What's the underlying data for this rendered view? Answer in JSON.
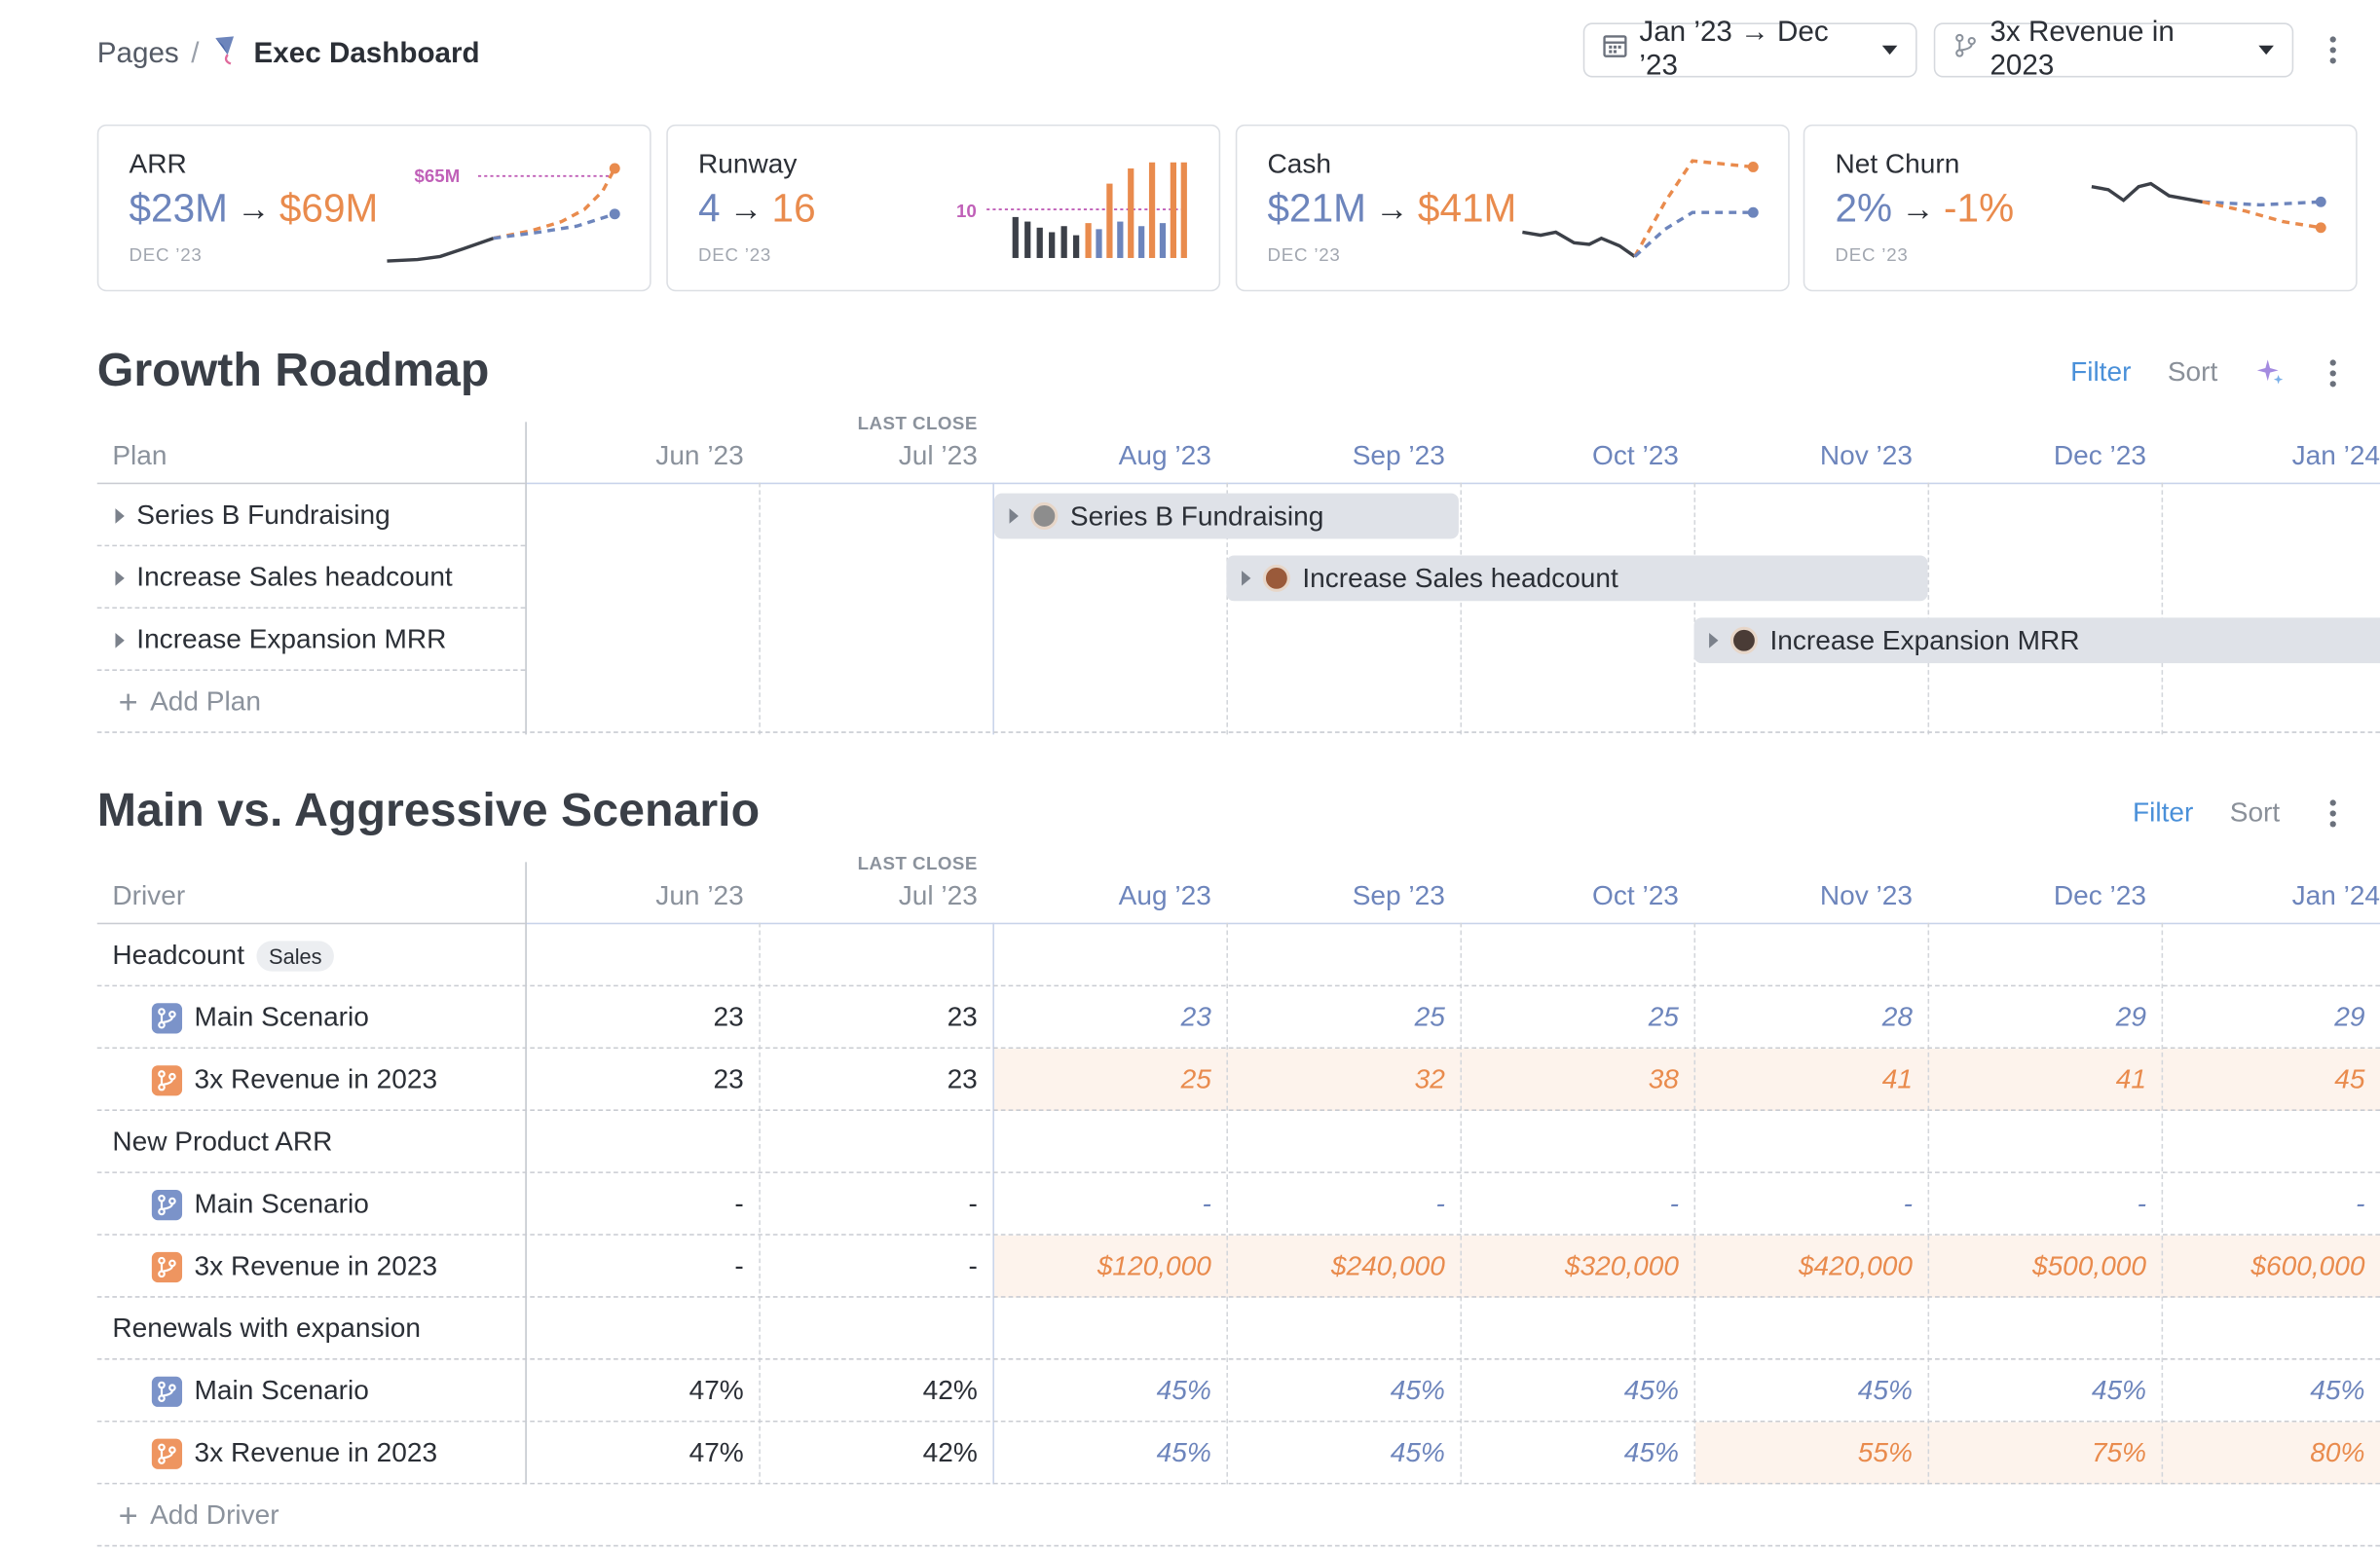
{
  "breadcrumb": {
    "root": "Pages",
    "separator": "/",
    "current": "Exec Dashboard"
  },
  "controls": {
    "date_range": "Jan ’23 → Dec ’23",
    "scenario": "3x Revenue in 2023"
  },
  "cards": [
    {
      "title": "ARR",
      "from": "$23M",
      "to": "$69M",
      "date": "DEC ’23",
      "annotation": "$65M"
    },
    {
      "title": "Runway",
      "from": "4",
      "to": "16",
      "date": "DEC ’23",
      "annotation": "10"
    },
    {
      "title": "Cash",
      "from": "$21M",
      "to": "$41M",
      "date": "DEC ’23"
    },
    {
      "title": "Net Churn",
      "from": "2%",
      "to": "-1%",
      "date": "DEC ’23"
    }
  ],
  "roadmap": {
    "title": "Growth Roadmap",
    "filter": "Filter",
    "sort": "Sort",
    "first_col": "Plan",
    "last_close": "LAST CLOSE",
    "months": [
      "Jun ’23",
      "Jul ’23",
      "Aug ’23",
      "Sep ’23",
      "Oct ’23",
      "Nov ’23",
      "Dec ’23",
      "Jan ’24"
    ],
    "plans": [
      "Series B Fundraising",
      "Increase Sales headcount",
      "Increase Expansion MRR"
    ],
    "add_label": "Add Plan"
  },
  "scenario": {
    "title": "Main vs. Aggressive Scenario",
    "filter": "Filter",
    "sort": "Sort",
    "first_col": "Driver",
    "last_close": "LAST CLOSE",
    "months": [
      "Jun ’23",
      "Jul ’23",
      "Aug ’23",
      "Sep ’23",
      "Oct ’23",
      "Nov ’23",
      "Dec ’23",
      "Jan ’24"
    ],
    "groups": [
      {
        "name": "Headcount",
        "tag": "Sales",
        "main": {
          "label": "Main Scenario",
          "values": [
            "23",
            "23",
            "23",
            "25",
            "25",
            "28",
            "29",
            "29"
          ]
        },
        "alt": {
          "label": "3x Revenue in 2023",
          "values": [
            "23",
            "23",
            "25",
            "32",
            "38",
            "41",
            "41",
            "45"
          ]
        }
      },
      {
        "name": "New Product ARR",
        "tag": "",
        "main": {
          "label": "Main Scenario",
          "values": [
            "-",
            "-",
            "-",
            "-",
            "-",
            "-",
            "-",
            "-"
          ]
        },
        "alt": {
          "label": "3x Revenue in 2023",
          "values": [
            "-",
            "-",
            "$120,000",
            "$240,000",
            "$320,000",
            "$420,000",
            "$500,000",
            "$600,000"
          ]
        }
      },
      {
        "name": "Renewals with expansion",
        "tag": "",
        "main": {
          "label": "Main Scenario",
          "values": [
            "47%",
            "42%",
            "45%",
            "45%",
            "45%",
            "45%",
            "45%",
            "45%"
          ]
        },
        "alt": {
          "label": "3x Revenue in 2023",
          "values": [
            "47%",
            "42%",
            "45%",
            "45%",
            "45%",
            "55%",
            "75%",
            "80%"
          ]
        }
      }
    ],
    "add_label": "Add Driver"
  },
  "colors": {
    "main": "#6d85bc",
    "alt": "#e98b4d",
    "accent": "#4a90d9"
  }
}
